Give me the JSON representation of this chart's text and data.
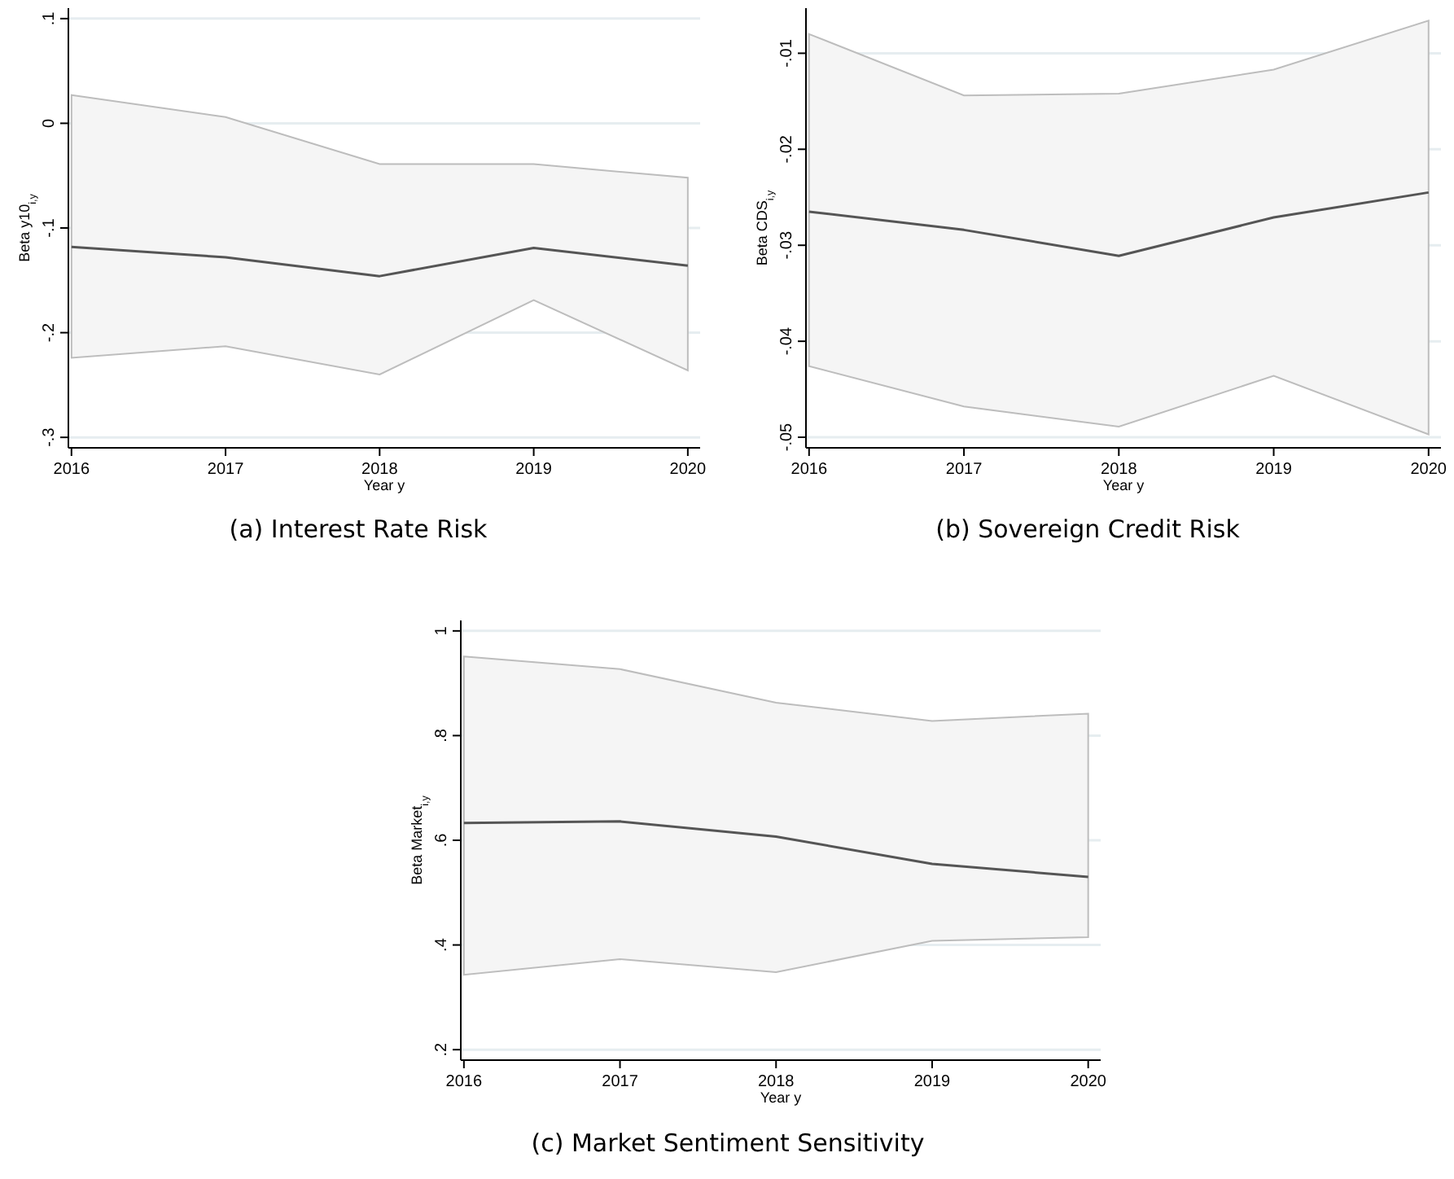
{
  "chart_data": [
    {
      "type": "line",
      "title": "(a) Interest Rate Risk",
      "xlabel": "Year y",
      "ylabel": "Beta y10$_{i,y}$",
      "x": [
        2016,
        2017,
        2018,
        2019,
        2020
      ],
      "xlim": [
        2015.98,
        2020.08
      ],
      "xticks": [
        2016,
        2017,
        2018,
        2019,
        2020
      ],
      "ylim": [
        -0.31,
        0.11
      ],
      "yticks": [
        {
          "value": -0.3,
          "label": "-.3"
        },
        {
          "value": -0.2,
          "label": "-.2"
        },
        {
          "value": -0.1,
          "label": "-.1"
        },
        0,
        {
          "value": 0.1,
          "label": ".1"
        }
      ],
      "grid": "y",
      "line_style": "solid",
      "series": [
        {
          "color": "#555555",
          "values": [
            -0.118,
            -0.128,
            -0.146,
            -0.119,
            -0.136
          ],
          "lower": [
            -0.224,
            -0.213,
            -0.24,
            -0.169,
            -0.236
          ],
          "upper": [
            0.027,
            0.006,
            -0.039,
            -0.039,
            -0.052
          ]
        }
      ]
    },
    {
      "type": "line",
      "title": "(b) Sovereign Credit Risk",
      "xlabel": "Year y",
      "ylabel": "Beta CDS$_{i,y}$",
      "x": [
        2016,
        2017,
        2018,
        2019,
        2020
      ],
      "xlim": [
        2015.98,
        2020.08
      ],
      "xticks": [
        2016,
        2017,
        2018,
        2019,
        2020
      ],
      "ylim": [
        -0.0511,
        -0.0053
      ],
      "yticks": [
        {
          "value": -0.05,
          "label": "-.05"
        },
        {
          "value": -0.04,
          "label": "-.04"
        },
        {
          "value": -0.03,
          "label": "-.03"
        },
        {
          "value": -0.02,
          "label": "-.02"
        },
        {
          "value": -0.01,
          "label": "-.01"
        }
      ],
      "grid": "y",
      "line_style": "solid",
      "series": [
        {
          "color": "#555555",
          "values": [
            -0.0265,
            -0.0284,
            -0.0311,
            -0.0271,
            -0.0245
          ],
          "lower": [
            -0.0426,
            -0.0468,
            -0.0489,
            -0.0436,
            -0.0497
          ],
          "upper": [
            -0.008,
            -0.0144,
            -0.0142,
            -0.0117,
            -0.0066
          ]
        }
      ]
    },
    {
      "type": "line",
      "title": "(c) Market Sentiment Sensitivity",
      "xlabel": "Year y",
      "ylabel": "Beta Market$_{i,y}$",
      "x": [
        2016,
        2017,
        2018,
        2019,
        2020
      ],
      "xlim": [
        2015.98,
        2020.08
      ],
      "xticks": [
        2016,
        2017,
        2018,
        2019,
        2020
      ],
      "ylim": [
        0.18,
        1.02
      ],
      "yticks": [
        {
          "value": 0.2,
          "label": ".2"
        },
        {
          "value": 0.4,
          "label": ".4"
        },
        {
          "value": 0.6,
          "label": ".6"
        },
        {
          "value": 0.8,
          "label": ".8"
        },
        1
      ],
      "grid": "y",
      "line_style": "solid",
      "series": [
        {
          "color": "#555555",
          "values": [
            0.633,
            0.636,
            0.607,
            0.555,
            0.53
          ],
          "lower": [
            0.343,
            0.373,
            0.348,
            0.408,
            0.415
          ],
          "upper": [
            0.951,
            0.927,
            0.863,
            0.828,
            0.842
          ]
        }
      ]
    }
  ]
}
